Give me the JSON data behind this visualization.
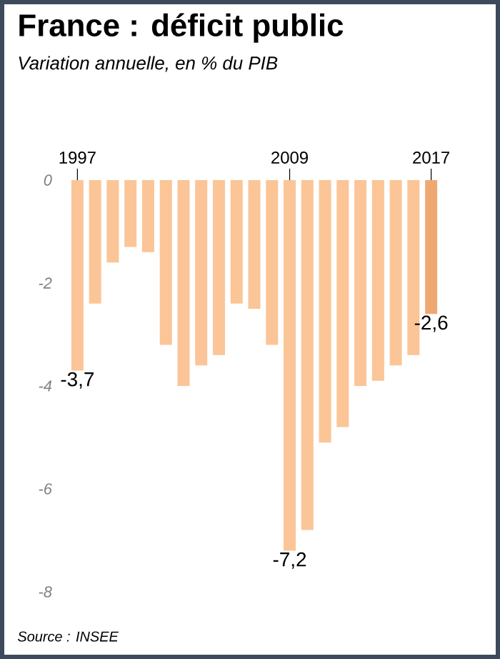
{
  "chart_data": {
    "type": "bar",
    "title": "France : déficit public",
    "subtitle": "Variation annuelle, en % du PIB",
    "categories": [
      "1997",
      null,
      null,
      null,
      null,
      null,
      null,
      null,
      null,
      null,
      null,
      null,
      "2009",
      null,
      null,
      null,
      null,
      null,
      null,
      null,
      "2017"
    ],
    "values": [
      -3.7,
      -2.4,
      -1.6,
      -1.3,
      -1.4,
      -3.2,
      -4.0,
      -3.6,
      -3.4,
      -2.4,
      -2.5,
      -3.2,
      -7.2,
      -6.8,
      -5.1,
      -4.8,
      -4.0,
      -3.9,
      -3.6,
      -3.4,
      -2.6
    ],
    "value_labels": [
      "-3,7",
      null,
      null,
      null,
      null,
      null,
      null,
      null,
      null,
      null,
      null,
      null,
      "-7,2",
      null,
      null,
      null,
      null,
      null,
      null,
      null,
      "-2,6"
    ],
    "colors": [
      "#fbc597",
      "#fbc597",
      "#fbc597",
      "#fbc597",
      "#fbc597",
      "#fbc597",
      "#fbc597",
      "#fbc597",
      "#fbc597",
      "#fbc597",
      "#fbc597",
      "#fbc597",
      "#fbc597",
      "#fbc597",
      "#fbc597",
      "#fbc597",
      "#fbc597",
      "#fbc597",
      "#fbc597",
      "#fbc597",
      "#f0a872"
    ],
    "ylim": [
      -8,
      0
    ],
    "yticks": [
      0,
      -2,
      -4,
      -6,
      -8
    ],
    "annotations": [
      "Source : INSEE"
    ]
  }
}
